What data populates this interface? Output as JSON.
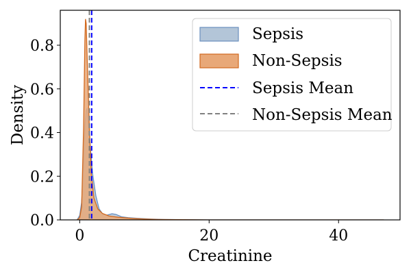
{
  "chart_data": {
    "type": "area",
    "xlabel": "Creatinine",
    "ylabel": "Density",
    "xlim": [
      -3.0,
      49.5
    ],
    "ylim": [
      0,
      0.96
    ],
    "x_ticks": [
      0,
      20,
      40
    ],
    "y_ticks": [
      0.0,
      0.2,
      0.4,
      0.6,
      0.8
    ],
    "x_tick_labels": [
      "0",
      "20",
      "40"
    ],
    "y_tick_labels": [
      "0.0",
      "0.2",
      "0.4",
      "0.6",
      "0.8"
    ],
    "grid": false,
    "legend_position": "top-right",
    "series": [
      {
        "name": "Sepsis",
        "kind": "density",
        "fill": "#b3c5d8",
        "stroke": "#6a8fbf",
        "points": [
          [
            -0.4,
            0.0
          ],
          [
            0.0,
            0.02
          ],
          [
            0.3,
            0.08
          ],
          [
            0.6,
            0.26
          ],
          [
            0.8,
            0.43
          ],
          [
            1.0,
            0.5
          ],
          [
            1.15,
            0.51
          ],
          [
            1.3,
            0.46
          ],
          [
            1.6,
            0.35
          ],
          [
            2.0,
            0.21
          ],
          [
            2.5,
            0.11
          ],
          [
            3.0,
            0.05
          ],
          [
            3.6,
            0.025
          ],
          [
            4.2,
            0.022
          ],
          [
            5.0,
            0.028
          ],
          [
            5.6,
            0.025
          ],
          [
            6.5,
            0.014
          ],
          [
            7.5,
            0.01
          ],
          [
            9.0,
            0.007
          ],
          [
            11.0,
            0.004
          ],
          [
            13.0,
            0.002
          ],
          [
            16.0,
            0.001
          ],
          [
            20.0,
            0.0
          ],
          [
            30.0,
            0.0
          ],
          [
            40.0,
            0.0
          ],
          [
            47.0,
            0.0
          ]
        ]
      },
      {
        "name": "Non-Sepsis",
        "kind": "density",
        "fill": "#e8a878",
        "stroke": "#d2691e",
        "points": [
          [
            -0.4,
            0.0
          ],
          [
            0.0,
            0.01
          ],
          [
            0.3,
            0.06
          ],
          [
            0.6,
            0.42
          ],
          [
            0.8,
            0.82
          ],
          [
            0.9,
            0.92
          ],
          [
            1.0,
            0.9
          ],
          [
            1.2,
            0.7
          ],
          [
            1.5,
            0.42
          ],
          [
            1.8,
            0.21
          ],
          [
            2.2,
            0.1
          ],
          [
            2.8,
            0.05
          ],
          [
            3.5,
            0.03
          ],
          [
            4.5,
            0.018
          ],
          [
            6.0,
            0.012
          ],
          [
            8.0,
            0.007
          ],
          [
            10.0,
            0.004
          ],
          [
            12.0,
            0.002
          ],
          [
            15.0,
            0.001
          ],
          [
            20.0,
            0.0
          ],
          [
            30.0,
            0.0
          ],
          [
            40.0,
            0.0
          ],
          [
            47.0,
            0.0
          ]
        ]
      },
      {
        "name": "Sepsis Mean",
        "kind": "vline",
        "x": 1.85,
        "color": "#0000ff",
        "dash": "dashed"
      },
      {
        "name": "Non-Sepsis Mean",
        "kind": "vline",
        "x": 1.5,
        "color": "#808080",
        "dash": "dashed"
      }
    ]
  }
}
